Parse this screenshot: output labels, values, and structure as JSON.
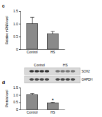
{
  "chart_data": [
    {
      "type": "bar",
      "title": "c",
      "y_label": "Relative mRNA level",
      "categories": [
        "Control",
        "HS"
      ],
      "values": [
        1.0,
        0.6
      ],
      "errors": [
        0.25,
        0.1
      ],
      "color": "#8a8a8a",
      "ylim": [
        0,
        1.5
      ],
      "yticks": [
        0,
        0.5,
        {
          "value": 1,
          "label": "1.0"
        },
        1.5
      ]
    },
    {
      "type": "bar",
      "title": "d",
      "y_label": "Protein level",
      "categories": [
        "Control",
        "HS"
      ],
      "values": [
        1.0,
        0.45
      ],
      "errors": [
        0.1,
        0.04
      ],
      "color": "#8a8a8a",
      "ylim": [
        0,
        1.5
      ],
      "yticks": [
        0,
        0.5,
        {
          "value": 1,
          "label": "1.0"
        },
        1.5
      ],
      "annotations": [
        {
          "text": "*",
          "x": "HS"
        }
      ]
    }
  ],
  "blot": {
    "lanes": [
      "Control",
      "HS"
    ],
    "bands": [
      "SOX2",
      "GAPDH"
    ]
  }
}
